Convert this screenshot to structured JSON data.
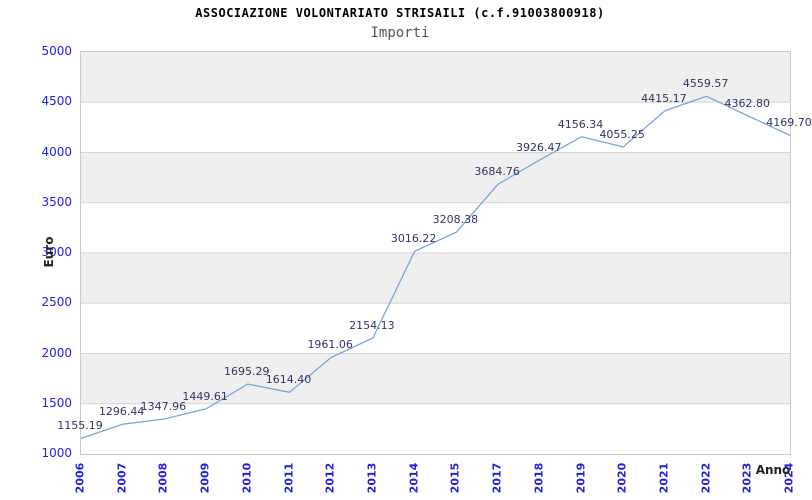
{
  "header": {
    "title": "ASSOCIAZIONE VOLONTARIATO STRISAILI (c.f.91003800918)",
    "subtitle": "Importi"
  },
  "chart_data": {
    "type": "line",
    "title": "Importi",
    "categories": [
      "2006",
      "2007",
      "2008",
      "2009",
      "2010",
      "2011",
      "2012",
      "2013",
      "2014",
      "2015",
      "2017",
      "2018",
      "2019",
      "2020",
      "2021",
      "2022",
      "2023",
      "2024"
    ],
    "values": [
      1155.19,
      1296.44,
      1347.96,
      1449.61,
      1695.29,
      1614.4,
      1961.06,
      2154.13,
      3016.22,
      3208.38,
      3684.76,
      3926.47,
      4156.34,
      4055.25,
      4415.17,
      4559.57,
      4362.8,
      4169.7
    ],
    "point_labels": [
      "1155.19",
      "1296.44",
      "1347.96",
      "1449.61",
      "1695.29",
      "1614.40",
      "1961.06",
      "2154.13",
      "3016.22",
      "3208.38",
      "3684.76",
      "3926.47",
      "4156.34",
      "4055.25",
      "4415.17",
      "4559.57",
      "4362.80",
      "4169.70"
    ],
    "xlabel": "Anno",
    "ylabel": "Euro",
    "ylim": [
      1000,
      5000
    ],
    "ytick_step": 500,
    "yticks": [
      "5000",
      "4500",
      "4000",
      "3500",
      "3000",
      "2500",
      "2000",
      "1500",
      "1000"
    ],
    "grid": "horizontal alternating bands, gridlines every 500",
    "legend": "none"
  },
  "colors": {
    "line": "#7aa7d9",
    "tick_label": "#2222dd",
    "value_label": "#333366",
    "band_gray": "#efefef",
    "plot_border": "#c9c9c9",
    "gridline": "#d6d6d6",
    "title": "#000000",
    "subtitle": "#555555",
    "axis_title": "#222222"
  }
}
